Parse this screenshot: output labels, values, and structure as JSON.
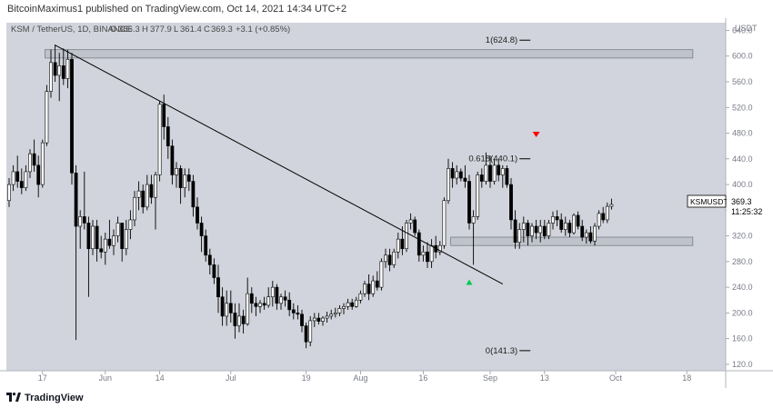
{
  "header": {
    "text": "BitcoinMaximus1 published on TradingView.com, Oct 14, 2021 14:34 UTC+2"
  },
  "legend": {
    "symbol": "KSM / TetherUS, 1D, BINANCE",
    "open": "366.3",
    "high": "377.9",
    "low": "361.4",
    "close": "369.3",
    "change": "+3.1 (+0.85%)"
  },
  "footer": {
    "logo_text": "TradingView"
  },
  "colors": {
    "plot_bg": "#d1d4dc",
    "up_fill": "#ffffff",
    "down_fill": "#000000",
    "candle_border": "#000000",
    "zone_fill": "#bfc3cc",
    "zone_border": "#7a7d85",
    "trendline": "#000000",
    "arrow_down": "#ff0000",
    "arrow_up": "#00c853"
  },
  "chart_data": {
    "type": "candlestick",
    "currency_label": "USDT",
    "price_tag": {
      "symbol": "KSMUSDT",
      "price": "369.3",
      "countdown": "11:25:32"
    },
    "y_ticks": [
      640,
      600,
      560,
      520,
      480,
      440,
      400,
      360,
      320,
      280,
      240,
      200,
      160,
      120
    ],
    "y_tick_labels": [
      "640.0",
      "600.0",
      "560.0",
      "520.0",
      "480.0",
      "440.0",
      "400.0",
      "360.0",
      "320.0",
      "280.0",
      "240.0",
      "200.0",
      "160.0",
      "120.0"
    ],
    "ylim": [
      110,
      652
    ],
    "x_ticks": [
      {
        "label": "17",
        "index": 8
      },
      {
        "label": "Jun",
        "index": 23
      },
      {
        "label": "14",
        "index": 36
      },
      {
        "label": "Jul",
        "index": 53
      },
      {
        "label": "19",
        "index": 71
      },
      {
        "label": "Aug",
        "index": 84
      },
      {
        "label": "16",
        "index": 99
      },
      {
        "label": "Sep",
        "index": 115
      },
      {
        "label": "13",
        "index": 128
      },
      {
        "label": "Oct",
        "index": 145
      },
      {
        "label": "18",
        "index": 162
      }
    ],
    "zones": [
      {
        "from": 597,
        "to": 610,
        "start_index": 9,
        "end_index": 163
      },
      {
        "from": 305,
        "to": 318,
        "start_index": 106,
        "end_index": 163
      }
    ],
    "fib_levels": [
      {
        "label": "1(624.8)",
        "value": 624.8,
        "index": 122
      },
      {
        "label": "0.618(440.1)",
        "value": 440.1,
        "index": 122
      },
      {
        "label": "0(141.3)",
        "value": 141.3,
        "index": 122
      }
    ],
    "trendline": {
      "start": {
        "index": 11,
        "value": 617
      },
      "end": {
        "index": 118,
        "value": 245
      }
    },
    "markers": [
      {
        "type": "down_arrow",
        "index": 126,
        "value": 478
      },
      {
        "type": "up_arrow",
        "index": 110,
        "value": 248
      }
    ],
    "candles": [
      {
        "o": 375,
        "h": 410,
        "l": 365,
        "c": 400
      },
      {
        "o": 400,
        "h": 430,
        "l": 390,
        "c": 420
      },
      {
        "o": 420,
        "h": 445,
        "l": 395,
        "c": 405
      },
      {
        "o": 405,
        "h": 425,
        "l": 385,
        "c": 395
      },
      {
        "o": 395,
        "h": 430,
        "l": 390,
        "c": 420
      },
      {
        "o": 420,
        "h": 455,
        "l": 410,
        "c": 448
      },
      {
        "o": 448,
        "h": 470,
        "l": 420,
        "c": 430
      },
      {
        "o": 430,
        "h": 445,
        "l": 380,
        "c": 400
      },
      {
        "o": 400,
        "h": 470,
        "l": 395,
        "c": 465
      },
      {
        "o": 465,
        "h": 555,
        "l": 460,
        "c": 545
      },
      {
        "o": 545,
        "h": 610,
        "l": 535,
        "c": 590
      },
      {
        "o": 590,
        "h": 618,
        "l": 560,
        "c": 570
      },
      {
        "o": 570,
        "h": 605,
        "l": 530,
        "c": 585
      },
      {
        "o": 585,
        "h": 612,
        "l": 555,
        "c": 565
      },
      {
        "o": 565,
        "h": 610,
        "l": 550,
        "c": 595
      },
      {
        "o": 595,
        "h": 605,
        "l": 400,
        "c": 418
      },
      {
        "o": 418,
        "h": 430,
        "l": 158,
        "c": 335
      },
      {
        "o": 335,
        "h": 360,
        "l": 300,
        "c": 350
      },
      {
        "o": 350,
        "h": 420,
        "l": 330,
        "c": 340
      },
      {
        "o": 340,
        "h": 350,
        "l": 225,
        "c": 300
      },
      {
        "o": 300,
        "h": 345,
        "l": 290,
        "c": 335
      },
      {
        "o": 335,
        "h": 345,
        "l": 280,
        "c": 300
      },
      {
        "o": 300,
        "h": 320,
        "l": 285,
        "c": 295
      },
      {
        "o": 295,
        "h": 325,
        "l": 275,
        "c": 315
      },
      {
        "o": 315,
        "h": 345,
        "l": 300,
        "c": 305
      },
      {
        "o": 305,
        "h": 330,
        "l": 290,
        "c": 320
      },
      {
        "o": 320,
        "h": 350,
        "l": 310,
        "c": 340
      },
      {
        "o": 340,
        "h": 340,
        "l": 280,
        "c": 300
      },
      {
        "o": 300,
        "h": 345,
        "l": 290,
        "c": 330
      },
      {
        "o": 330,
        "h": 360,
        "l": 315,
        "c": 345
      },
      {
        "o": 345,
        "h": 390,
        "l": 335,
        "c": 380
      },
      {
        "o": 380,
        "h": 405,
        "l": 360,
        "c": 390
      },
      {
        "o": 390,
        "h": 400,
        "l": 355,
        "c": 365
      },
      {
        "o": 365,
        "h": 415,
        "l": 360,
        "c": 400
      },
      {
        "o": 400,
        "h": 415,
        "l": 370,
        "c": 380
      },
      {
        "o": 380,
        "h": 420,
        "l": 330,
        "c": 415
      },
      {
        "o": 415,
        "h": 530,
        "l": 405,
        "c": 525
      },
      {
        "o": 525,
        "h": 540,
        "l": 470,
        "c": 490
      },
      {
        "o": 490,
        "h": 505,
        "l": 440,
        "c": 460
      },
      {
        "o": 460,
        "h": 470,
        "l": 400,
        "c": 415
      },
      {
        "o": 415,
        "h": 435,
        "l": 395,
        "c": 425
      },
      {
        "o": 425,
        "h": 430,
        "l": 370,
        "c": 395
      },
      {
        "o": 395,
        "h": 425,
        "l": 380,
        "c": 415
      },
      {
        "o": 415,
        "h": 425,
        "l": 390,
        "c": 405
      },
      {
        "o": 405,
        "h": 415,
        "l": 350,
        "c": 365
      },
      {
        "o": 365,
        "h": 380,
        "l": 330,
        "c": 340
      },
      {
        "o": 340,
        "h": 350,
        "l": 295,
        "c": 320
      },
      {
        "o": 320,
        "h": 330,
        "l": 280,
        "c": 290
      },
      {
        "o": 290,
        "h": 300,
        "l": 260,
        "c": 275
      },
      {
        "o": 275,
        "h": 285,
        "l": 245,
        "c": 255
      },
      {
        "o": 255,
        "h": 275,
        "l": 200,
        "c": 225
      },
      {
        "o": 225,
        "h": 240,
        "l": 180,
        "c": 195
      },
      {
        "o": 195,
        "h": 235,
        "l": 180,
        "c": 215
      },
      {
        "o": 215,
        "h": 235,
        "l": 185,
        "c": 200
      },
      {
        "o": 200,
        "h": 215,
        "l": 160,
        "c": 180
      },
      {
        "o": 180,
        "h": 215,
        "l": 170,
        "c": 195
      },
      {
        "o": 195,
        "h": 205,
        "l": 168,
        "c": 183
      },
      {
        "o": 183,
        "h": 255,
        "l": 180,
        "c": 230
      },
      {
        "o": 230,
        "h": 240,
        "l": 200,
        "c": 215
      },
      {
        "o": 215,
        "h": 225,
        "l": 195,
        "c": 210
      },
      {
        "o": 210,
        "h": 220,
        "l": 200,
        "c": 215
      },
      {
        "o": 215,
        "h": 225,
        "l": 205,
        "c": 212
      },
      {
        "o": 212,
        "h": 240,
        "l": 208,
        "c": 225
      },
      {
        "o": 225,
        "h": 250,
        "l": 210,
        "c": 240
      },
      {
        "o": 240,
        "h": 245,
        "l": 205,
        "c": 215
      },
      {
        "o": 215,
        "h": 230,
        "l": 205,
        "c": 225
      },
      {
        "o": 225,
        "h": 235,
        "l": 210,
        "c": 220
      },
      {
        "o": 220,
        "h": 232,
        "l": 195,
        "c": 205
      },
      {
        "o": 205,
        "h": 215,
        "l": 190,
        "c": 200
      },
      {
        "o": 200,
        "h": 212,
        "l": 190,
        "c": 198
      },
      {
        "o": 198,
        "h": 205,
        "l": 170,
        "c": 180
      },
      {
        "o": 180,
        "h": 185,
        "l": 145,
        "c": 155
      },
      {
        "o": 155,
        "h": 195,
        "l": 148,
        "c": 188
      },
      {
        "o": 188,
        "h": 200,
        "l": 178,
        "c": 192
      },
      {
        "o": 192,
        "h": 200,
        "l": 182,
        "c": 187
      },
      {
        "o": 187,
        "h": 195,
        "l": 180,
        "c": 192
      },
      {
        "o": 192,
        "h": 202,
        "l": 185,
        "c": 195
      },
      {
        "o": 195,
        "h": 205,
        "l": 190,
        "c": 198
      },
      {
        "o": 198,
        "h": 208,
        "l": 193,
        "c": 200
      },
      {
        "o": 200,
        "h": 212,
        "l": 195,
        "c": 207
      },
      {
        "o": 207,
        "h": 215,
        "l": 198,
        "c": 210
      },
      {
        "o": 210,
        "h": 222,
        "l": 205,
        "c": 216
      },
      {
        "o": 216,
        "h": 222,
        "l": 205,
        "c": 210
      },
      {
        "o": 210,
        "h": 225,
        "l": 208,
        "c": 220
      },
      {
        "o": 220,
        "h": 235,
        "l": 215,
        "c": 230
      },
      {
        "o": 230,
        "h": 250,
        "l": 225,
        "c": 245
      },
      {
        "o": 245,
        "h": 260,
        "l": 220,
        "c": 230
      },
      {
        "o": 230,
        "h": 258,
        "l": 225,
        "c": 250
      },
      {
        "o": 250,
        "h": 265,
        "l": 235,
        "c": 240
      },
      {
        "o": 240,
        "h": 285,
        "l": 235,
        "c": 280
      },
      {
        "o": 280,
        "h": 300,
        "l": 270,
        "c": 290
      },
      {
        "o": 290,
        "h": 300,
        "l": 265,
        "c": 275
      },
      {
        "o": 275,
        "h": 300,
        "l": 270,
        "c": 295
      },
      {
        "o": 295,
        "h": 325,
        "l": 285,
        "c": 315
      },
      {
        "o": 315,
        "h": 335,
        "l": 290,
        "c": 300
      },
      {
        "o": 300,
        "h": 345,
        "l": 295,
        "c": 340
      },
      {
        "o": 340,
        "h": 355,
        "l": 330,
        "c": 345
      },
      {
        "o": 345,
        "h": 350,
        "l": 320,
        "c": 325
      },
      {
        "o": 325,
        "h": 330,
        "l": 280,
        "c": 290
      },
      {
        "o": 290,
        "h": 305,
        "l": 280,
        "c": 295
      },
      {
        "o": 295,
        "h": 310,
        "l": 270,
        "c": 280
      },
      {
        "o": 280,
        "h": 315,
        "l": 270,
        "c": 305
      },
      {
        "o": 305,
        "h": 320,
        "l": 285,
        "c": 295
      },
      {
        "o": 295,
        "h": 312,
        "l": 290,
        "c": 305
      },
      {
        "o": 305,
        "h": 380,
        "l": 300,
        "c": 375
      },
      {
        "o": 375,
        "h": 440,
        "l": 370,
        "c": 425
      },
      {
        "o": 425,
        "h": 435,
        "l": 395,
        "c": 410
      },
      {
        "o": 410,
        "h": 430,
        "l": 400,
        "c": 420
      },
      {
        "o": 420,
        "h": 425,
        "l": 405,
        "c": 410
      },
      {
        "o": 410,
        "h": 430,
        "l": 395,
        "c": 405
      },
      {
        "o": 405,
        "h": 415,
        "l": 330,
        "c": 340
      },
      {
        "o": 340,
        "h": 360,
        "l": 275,
        "c": 350
      },
      {
        "o": 350,
        "h": 420,
        "l": 345,
        "c": 415
      },
      {
        "o": 415,
        "h": 425,
        "l": 395,
        "c": 405
      },
      {
        "o": 405,
        "h": 450,
        "l": 400,
        "c": 430
      },
      {
        "o": 430,
        "h": 445,
        "l": 395,
        "c": 405
      },
      {
        "o": 405,
        "h": 440,
        "l": 400,
        "c": 430
      },
      {
        "o": 430,
        "h": 440,
        "l": 405,
        "c": 415
      },
      {
        "o": 415,
        "h": 430,
        "l": 395,
        "c": 425
      },
      {
        "o": 425,
        "h": 430,
        "l": 395,
        "c": 400
      },
      {
        "o": 400,
        "h": 410,
        "l": 330,
        "c": 345
      },
      {
        "o": 345,
        "h": 360,
        "l": 300,
        "c": 310
      },
      {
        "o": 310,
        "h": 340,
        "l": 300,
        "c": 330
      },
      {
        "o": 330,
        "h": 350,
        "l": 310,
        "c": 340
      },
      {
        "o": 340,
        "h": 345,
        "l": 305,
        "c": 320
      },
      {
        "o": 320,
        "h": 340,
        "l": 310,
        "c": 335
      },
      {
        "o": 335,
        "h": 345,
        "l": 315,
        "c": 325
      },
      {
        "o": 325,
        "h": 345,
        "l": 310,
        "c": 335
      },
      {
        "o": 335,
        "h": 345,
        "l": 315,
        "c": 320
      },
      {
        "o": 320,
        "h": 345,
        "l": 315,
        "c": 340
      },
      {
        "o": 340,
        "h": 358,
        "l": 330,
        "c": 350
      },
      {
        "o": 350,
        "h": 360,
        "l": 335,
        "c": 345
      },
      {
        "o": 345,
        "h": 355,
        "l": 325,
        "c": 330
      },
      {
        "o": 330,
        "h": 350,
        "l": 320,
        "c": 340
      },
      {
        "o": 340,
        "h": 345,
        "l": 318,
        "c": 325
      },
      {
        "o": 325,
        "h": 355,
        "l": 322,
        "c": 352
      },
      {
        "o": 352,
        "h": 358,
        "l": 330,
        "c": 335
      },
      {
        "o": 335,
        "h": 345,
        "l": 312,
        "c": 318
      },
      {
        "o": 318,
        "h": 330,
        "l": 308,
        "c": 325
      },
      {
        "o": 325,
        "h": 335,
        "l": 308,
        "c": 312
      },
      {
        "o": 312,
        "h": 340,
        "l": 305,
        "c": 335
      },
      {
        "o": 335,
        "h": 360,
        "l": 330,
        "c": 355
      },
      {
        "o": 355,
        "h": 365,
        "l": 340,
        "c": 345
      },
      {
        "o": 345,
        "h": 372,
        "l": 340,
        "c": 366
      },
      {
        "o": 366,
        "h": 378,
        "l": 361,
        "c": 369
      }
    ]
  }
}
